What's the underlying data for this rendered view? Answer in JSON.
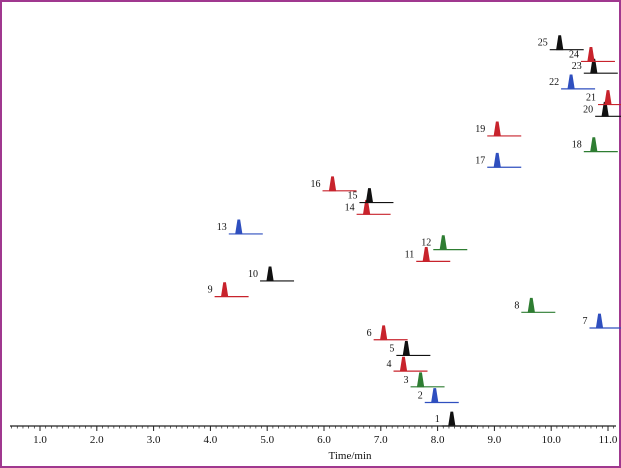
{
  "colors": {
    "frame": "#a0388f",
    "axis": "#222222",
    "black": "#111111",
    "red": "#c8232c",
    "green": "#2e7d32",
    "blue": "#2f4fbf"
  },
  "chart_data": {
    "type": "line",
    "title": "",
    "xlabel": "Time/min",
    "ylabel": "",
    "xlim": [
      0.5,
      11.3
    ],
    "ylim": [
      0,
      1
    ],
    "grid": false,
    "x_ticks": [
      1.0,
      2.0,
      3.0,
      4.0,
      5.0,
      6.0,
      7.0,
      8.0,
      9.0,
      10.0,
      11.0
    ],
    "tick_labels": [
      "1.0",
      "2.0",
      "3.0",
      "4.0",
      "5.0",
      "6.0",
      "7.0",
      "8.0",
      "9.0",
      "10.0",
      "11.0"
    ],
    "peaks": [
      {
        "label": "1",
        "rt": 8.25,
        "offset": 0.0,
        "color": "black"
      },
      {
        "label": "2",
        "rt": 7.95,
        "offset": 0.06,
        "color": "blue"
      },
      {
        "label": "3",
        "rt": 7.7,
        "offset": 0.1,
        "color": "green"
      },
      {
        "label": "4",
        "rt": 7.4,
        "offset": 0.14,
        "color": "red"
      },
      {
        "label": "5",
        "rt": 7.45,
        "offset": 0.18,
        "color": "black"
      },
      {
        "label": "6",
        "rt": 7.05,
        "offset": 0.22,
        "color": "red"
      },
      {
        "label": "7",
        "rt": 10.85,
        "offset": 0.25,
        "color": "blue"
      },
      {
        "label": "8",
        "rt": 9.65,
        "offset": 0.29,
        "color": "green"
      },
      {
        "label": "9",
        "rt": 4.25,
        "offset": 0.33,
        "color": "red"
      },
      {
        "label": "10",
        "rt": 5.05,
        "offset": 0.37,
        "color": "black"
      },
      {
        "label": "11",
        "rt": 7.8,
        "offset": 0.42,
        "color": "red"
      },
      {
        "label": "12",
        "rt": 8.1,
        "offset": 0.45,
        "color": "green"
      },
      {
        "label": "13",
        "rt": 4.5,
        "offset": 0.49,
        "color": "blue"
      },
      {
        "label": "14",
        "rt": 6.75,
        "offset": 0.54,
        "color": "red"
      },
      {
        "label": "15",
        "rt": 6.8,
        "offset": 0.57,
        "color": "black"
      },
      {
        "label": "16",
        "rt": 6.15,
        "offset": 0.6,
        "color": "red"
      },
      {
        "label": "17",
        "rt": 9.05,
        "offset": 0.66,
        "color": "blue"
      },
      {
        "label": "18",
        "rt": 10.75,
        "offset": 0.7,
        "color": "green"
      },
      {
        "label": "19",
        "rt": 9.05,
        "offset": 0.74,
        "color": "red"
      },
      {
        "label": "20",
        "rt": 10.95,
        "offset": 0.79,
        "color": "black"
      },
      {
        "label": "21",
        "rt": 11.0,
        "offset": 0.82,
        "color": "red"
      },
      {
        "label": "22",
        "rt": 10.35,
        "offset": 0.86,
        "color": "blue"
      },
      {
        "label": "23",
        "rt": 10.75,
        "offset": 0.9,
        "color": "black"
      },
      {
        "label": "24",
        "rt": 10.7,
        "offset": 0.93,
        "color": "red"
      },
      {
        "label": "25",
        "rt": 10.15,
        "offset": 0.96,
        "color": "black"
      }
    ]
  }
}
